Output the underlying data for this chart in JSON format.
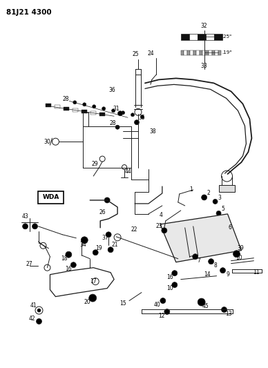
{
  "title": "81J21 4300",
  "bg_color": "#ffffff",
  "line_color": "#1a1a1a",
  "figsize": [
    3.88,
    5.33
  ],
  "dpi": 100,
  "wda_label": "WDA",
  "dim1": ".25\"",
  "dim2": ".19\""
}
